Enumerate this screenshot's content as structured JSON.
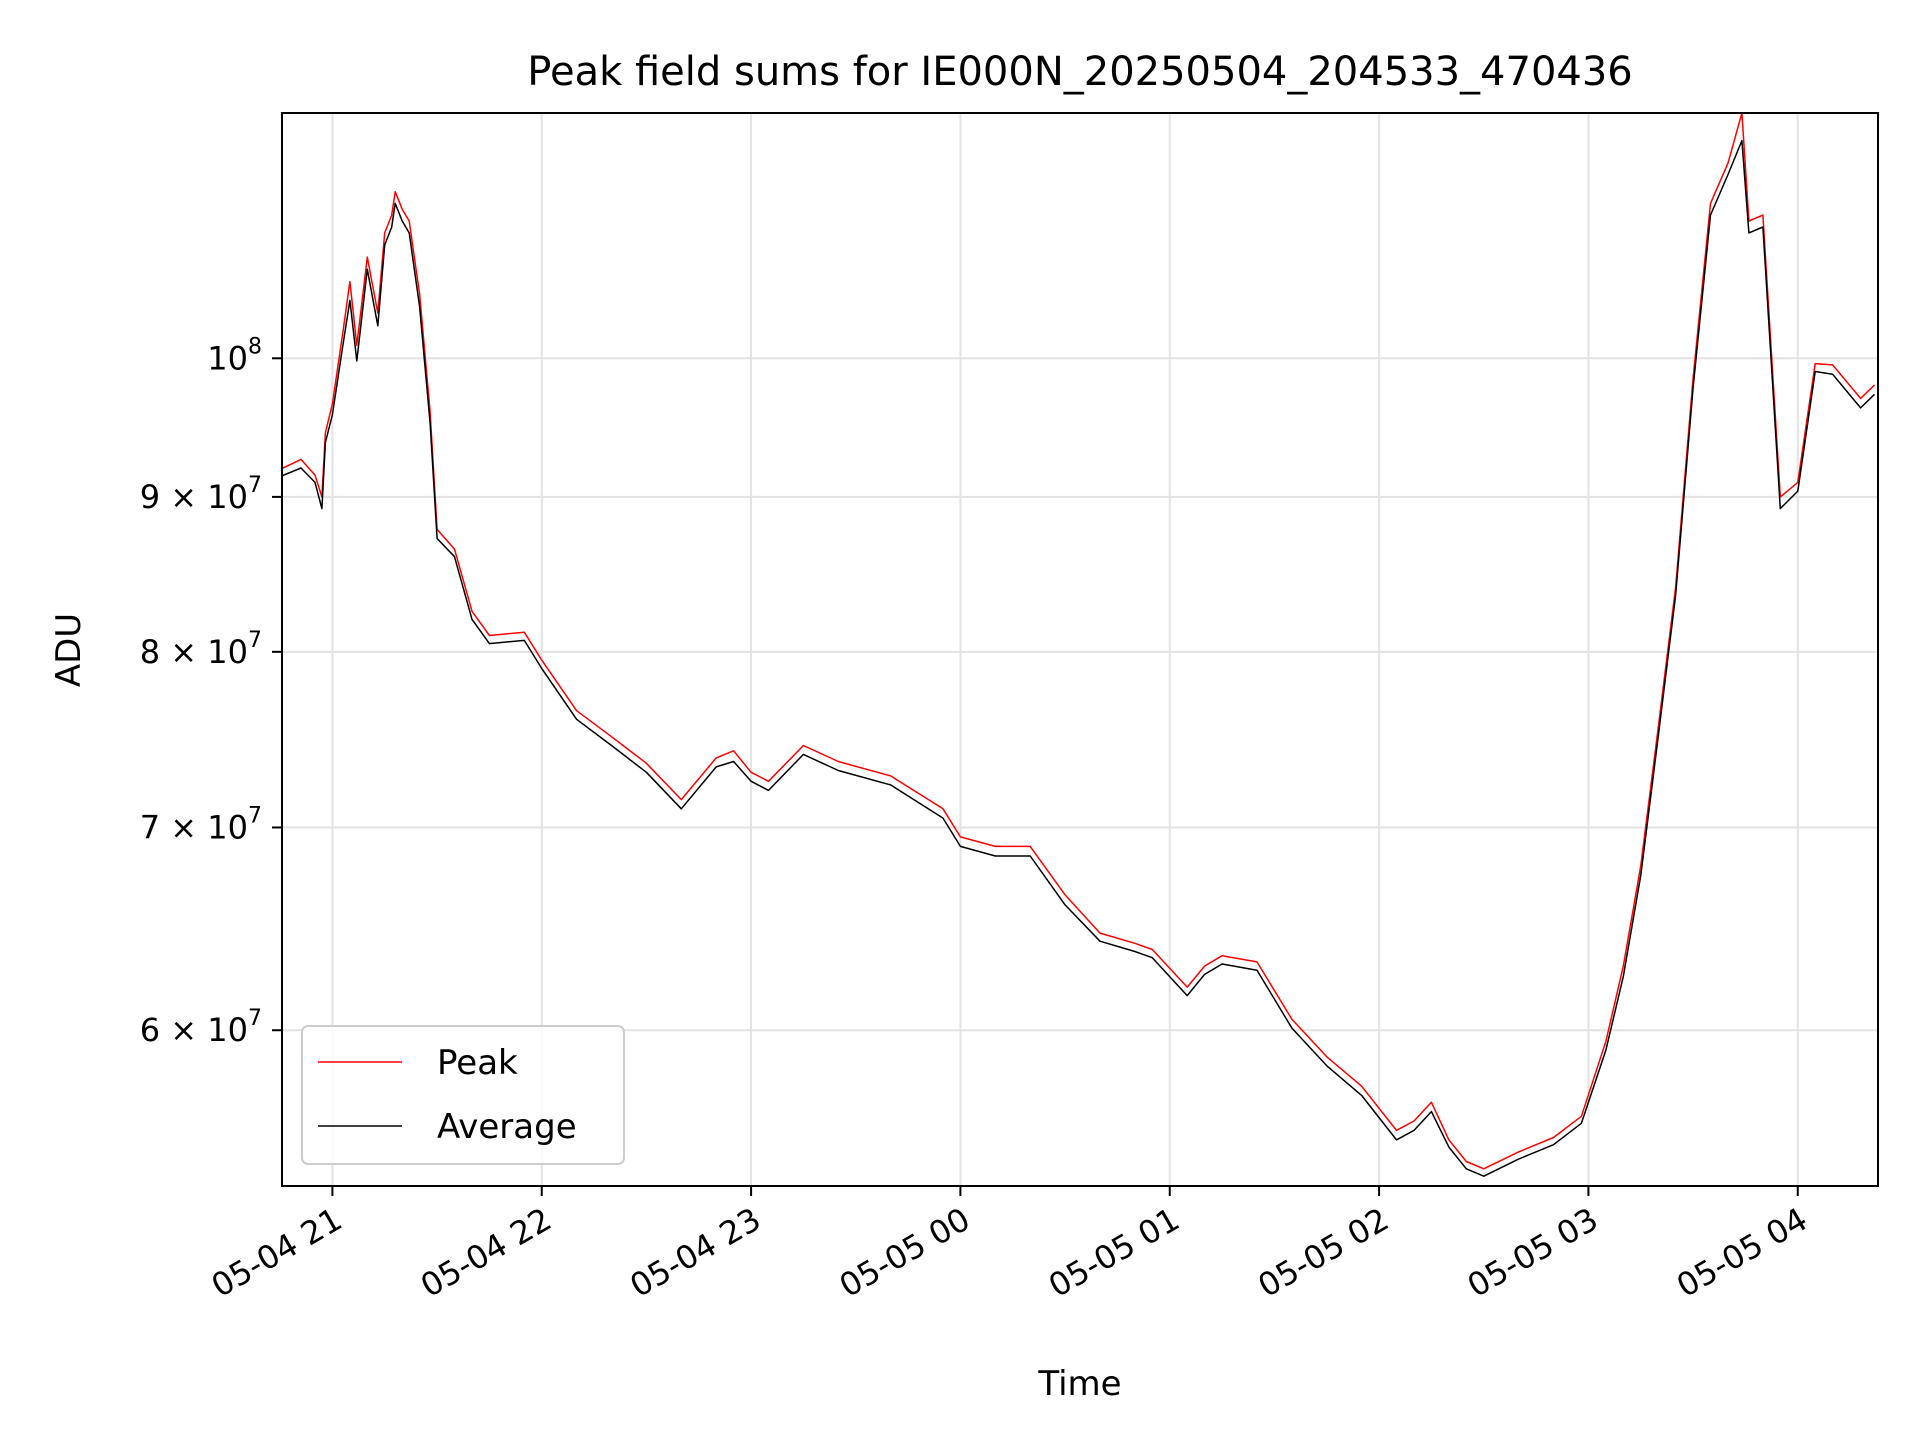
{
  "chart_data": {
    "type": "line",
    "title": "Peak field sums for IE000N_20250504_204533_470436",
    "xlabel": "Time",
    "ylabel": "ADU",
    "y_scale": "log",
    "grid": true,
    "legend_position": "lower-left",
    "xlim": [
      "2025-05-04 20:45:33",
      "2025-05-05 04:23:00"
    ],
    "ylim": [
      53300000,
      120500000
    ],
    "x_ticks": [
      {
        "t": "2025-05-04 21:00",
        "label": "05-04 21"
      },
      {
        "t": "2025-05-04 22:00",
        "label": "05-04 22"
      },
      {
        "t": "2025-05-04 23:00",
        "label": "05-04 23"
      },
      {
        "t": "2025-05-05 00:00",
        "label": "05-05 00"
      },
      {
        "t": "2025-05-05 01:00",
        "label": "05-05 01"
      },
      {
        "t": "2025-05-05 02:00",
        "label": "05-05 02"
      },
      {
        "t": "2025-05-05 03:00",
        "label": "05-05 03"
      },
      {
        "t": "2025-05-05 04:00",
        "label": "05-05 04"
      }
    ],
    "y_ticks": [
      {
        "value": 60000000,
        "base": "6 × 10",
        "exp": "7"
      },
      {
        "value": 70000000,
        "base": "7 × 10",
        "exp": "7"
      },
      {
        "value": 80000000,
        "base": "8 × 10",
        "exp": "7"
      },
      {
        "value": 90000000,
        "base": "9 × 10",
        "exp": "7"
      },
      {
        "value": 100000000,
        "base": "10",
        "exp": "8"
      }
    ],
    "series": [
      {
        "name": "Peak",
        "color": "#ff0000",
        "points": [
          [
            "2025-05-04 20:45",
            91900000
          ],
          [
            "2025-05-04 20:51",
            92600000
          ],
          [
            "2025-05-04 20:55",
            91500000
          ],
          [
            "2025-05-04 20:57",
            90000000
          ],
          [
            "2025-05-04 20:58",
            94500000
          ],
          [
            "2025-05-04 21:00",
            96600000
          ],
          [
            "2025-05-04 21:03",
            102000000
          ],
          [
            "2025-05-04 21:05",
            106000000
          ],
          [
            "2025-05-04 21:07",
            101000000
          ],
          [
            "2025-05-04 21:10",
            108000000
          ],
          [
            "2025-05-04 21:13",
            103500000
          ],
          [
            "2025-05-04 21:15",
            110000000
          ],
          [
            "2025-05-04 21:17",
            111500000
          ],
          [
            "2025-05-04 21:18",
            113500000
          ],
          [
            "2025-05-04 21:20",
            112000000
          ],
          [
            "2025-05-04 21:22",
            111000000
          ],
          [
            "2025-05-04 21:25",
            105000000
          ],
          [
            "2025-05-04 21:28",
            96000000
          ],
          [
            "2025-05-04 21:30",
            87800000
          ],
          [
            "2025-05-04 21:35",
            86500000
          ],
          [
            "2025-05-04 21:40",
            82500000
          ],
          [
            "2025-05-04 21:45",
            81000000
          ],
          [
            "2025-05-04 21:55",
            81200000
          ],
          [
            "2025-05-04 22:00",
            79500000
          ],
          [
            "2025-05-04 22:10",
            76500000
          ],
          [
            "2025-05-04 22:20",
            75000000
          ],
          [
            "2025-05-04 22:30",
            73500000
          ],
          [
            "2025-05-04 22:40",
            71500000
          ],
          [
            "2025-05-04 22:50",
            73800000
          ],
          [
            "2025-05-04 22:55",
            74200000
          ],
          [
            "2025-05-04 23:00",
            73000000
          ],
          [
            "2025-05-04 23:05",
            72500000
          ],
          [
            "2025-05-04 23:15",
            74500000
          ],
          [
            "2025-05-04 23:25",
            73600000
          ],
          [
            "2025-05-04 23:40",
            72800000
          ],
          [
            "2025-05-04 23:55",
            71000000
          ],
          [
            "2025-05-05 00:00",
            69500000
          ],
          [
            "2025-05-05 00:10",
            69000000
          ],
          [
            "2025-05-05 00:20",
            69000000
          ],
          [
            "2025-05-05 00:30",
            66500000
          ],
          [
            "2025-05-05 00:40",
            64600000
          ],
          [
            "2025-05-05 00:50",
            64100000
          ],
          [
            "2025-05-05 00:55",
            63800000
          ],
          [
            "2025-05-05 01:05",
            62000000
          ],
          [
            "2025-05-05 01:10",
            63000000
          ],
          [
            "2025-05-05 01:15",
            63500000
          ],
          [
            "2025-05-05 01:25",
            63200000
          ],
          [
            "2025-05-05 01:35",
            60500000
          ],
          [
            "2025-05-05 01:45",
            58800000
          ],
          [
            "2025-05-05 01:55",
            57500000
          ],
          [
            "2025-05-05 02:05",
            55600000
          ],
          [
            "2025-05-05 02:10",
            56000000
          ],
          [
            "2025-05-05 02:15",
            56800000
          ],
          [
            "2025-05-05 02:20",
            55200000
          ],
          [
            "2025-05-05 02:25",
            54300000
          ],
          [
            "2025-05-05 02:30",
            54000000
          ],
          [
            "2025-05-05 02:40",
            54700000
          ],
          [
            "2025-05-05 02:50",
            55300000
          ],
          [
            "2025-05-05 02:58",
            56200000
          ],
          [
            "2025-05-05 03:05",
            59500000
          ],
          [
            "2025-05-05 03:10",
            63000000
          ],
          [
            "2025-05-05 03:15",
            68000000
          ],
          [
            "2025-05-05 03:20",
            75500000
          ],
          [
            "2025-05-05 03:25",
            84000000
          ],
          [
            "2025-05-05 03:30",
            98500000
          ],
          [
            "2025-05-05 03:35",
            112500000
          ],
          [
            "2025-05-05 03:40",
            116000000
          ],
          [
            "2025-05-05 03:44",
            120500000
          ],
          [
            "2025-05-05 03:46",
            111000000
          ],
          [
            "2025-05-05 03:50",
            111500000
          ],
          [
            "2025-05-05 03:55",
            90000000
          ],
          [
            "2025-05-05 04:00",
            91000000
          ],
          [
            "2025-05-05 04:05",
            99600000
          ],
          [
            "2025-05-05 04:10",
            99500000
          ],
          [
            "2025-05-05 04:18",
            97000000
          ],
          [
            "2025-05-05 04:22",
            98000000
          ]
        ]
      },
      {
        "name": "Average",
        "color": "#000000",
        "points": [
          [
            "2025-05-04 20:45",
            91400000
          ],
          [
            "2025-05-04 20:51",
            92000000
          ],
          [
            "2025-05-04 20:55",
            91000000
          ],
          [
            "2025-05-04 20:57",
            89200000
          ],
          [
            "2025-05-04 20:58",
            93800000
          ],
          [
            "2025-05-04 21:00",
            95800000
          ],
          [
            "2025-05-04 21:03",
            101000000
          ],
          [
            "2025-05-04 21:05",
            104500000
          ],
          [
            "2025-05-04 21:07",
            99800000
          ],
          [
            "2025-05-04 21:10",
            107000000
          ],
          [
            "2025-05-04 21:13",
            102500000
          ],
          [
            "2025-05-04 21:15",
            109000000
          ],
          [
            "2025-05-04 21:17",
            110500000
          ],
          [
            "2025-05-04 21:18",
            112500000
          ],
          [
            "2025-05-04 21:20",
            111000000
          ],
          [
            "2025-05-04 21:22",
            110000000
          ],
          [
            "2025-05-04 21:25",
            104000000
          ],
          [
            "2025-05-04 21:28",
            95200000
          ],
          [
            "2025-05-04 21:30",
            87200000
          ],
          [
            "2025-05-04 21:35",
            86000000
          ],
          [
            "2025-05-04 21:40",
            82000000
          ],
          [
            "2025-05-04 21:45",
            80500000
          ],
          [
            "2025-05-04 21:55",
            80700000
          ],
          [
            "2025-05-04 22:00",
            79000000
          ],
          [
            "2025-05-04 22:10",
            76000000
          ],
          [
            "2025-05-04 22:20",
            74500000
          ],
          [
            "2025-05-04 22:30",
            73000000
          ],
          [
            "2025-05-04 22:40",
            71000000
          ],
          [
            "2025-05-04 22:50",
            73300000
          ],
          [
            "2025-05-04 22:55",
            73600000
          ],
          [
            "2025-05-04 23:00",
            72500000
          ],
          [
            "2025-05-04 23:05",
            72000000
          ],
          [
            "2025-05-04 23:15",
            74000000
          ],
          [
            "2025-05-04 23:25",
            73100000
          ],
          [
            "2025-05-04 23:40",
            72300000
          ],
          [
            "2025-05-04 23:55",
            70500000
          ],
          [
            "2025-05-05 00:00",
            69000000
          ],
          [
            "2025-05-05 00:10",
            68500000
          ],
          [
            "2025-05-05 00:20",
            68500000
          ],
          [
            "2025-05-05 00:30",
            66000000
          ],
          [
            "2025-05-05 00:40",
            64200000
          ],
          [
            "2025-05-05 00:50",
            63700000
          ],
          [
            "2025-05-05 00:55",
            63400000
          ],
          [
            "2025-05-05 01:05",
            61600000
          ],
          [
            "2025-05-05 01:10",
            62600000
          ],
          [
            "2025-05-05 01:15",
            63100000
          ],
          [
            "2025-05-05 01:25",
            62800000
          ],
          [
            "2025-05-05 01:35",
            60100000
          ],
          [
            "2025-05-05 01:45",
            58400000
          ],
          [
            "2025-05-05 01:55",
            57100000
          ],
          [
            "2025-05-05 02:05",
            55200000
          ],
          [
            "2025-05-05 02:10",
            55600000
          ],
          [
            "2025-05-05 02:15",
            56400000
          ],
          [
            "2025-05-05 02:20",
            54900000
          ],
          [
            "2025-05-05 02:25",
            54000000
          ],
          [
            "2025-05-05 02:30",
            53700000
          ],
          [
            "2025-05-05 02:40",
            54400000
          ],
          [
            "2025-05-05 02:50",
            55000000
          ],
          [
            "2025-05-05 02:58",
            55900000
          ],
          [
            "2025-05-05 03:05",
            59100000
          ],
          [
            "2025-05-05 03:10",
            62500000
          ],
          [
            "2025-05-05 03:15",
            67500000
          ],
          [
            "2025-05-05 03:20",
            75000000
          ],
          [
            "2025-05-05 03:25",
            83500000
          ],
          [
            "2025-05-05 03:30",
            97800000
          ],
          [
            "2025-05-05 03:35",
            111500000
          ],
          [
            "2025-05-05 03:40",
            115000000
          ],
          [
            "2025-05-05 03:44",
            118000000
          ],
          [
            "2025-05-05 03:46",
            110000000
          ],
          [
            "2025-05-05 03:50",
            110500000
          ],
          [
            "2025-05-05 03:55",
            89200000
          ],
          [
            "2025-05-05 04:00",
            90400000
          ],
          [
            "2025-05-05 04:05",
            99000000
          ],
          [
            "2025-05-05 04:10",
            98800000
          ],
          [
            "2025-05-05 04:18",
            96300000
          ],
          [
            "2025-05-05 04:22",
            97300000
          ]
        ]
      }
    ]
  }
}
